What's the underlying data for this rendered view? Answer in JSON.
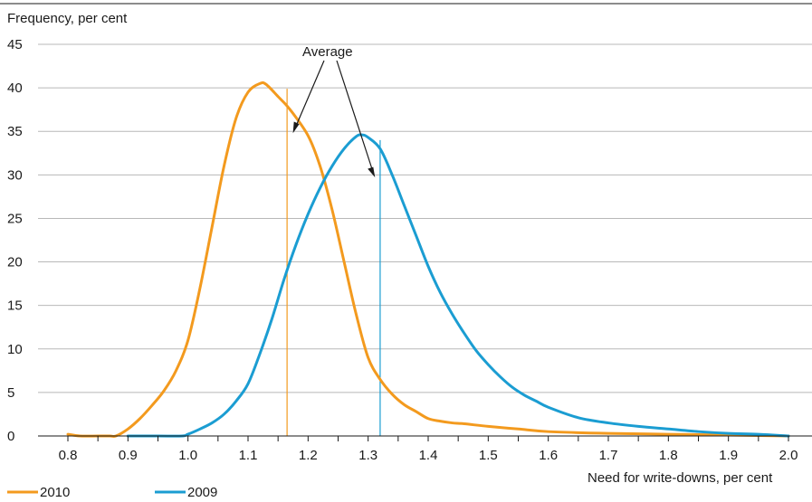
{
  "chart_data": {
    "type": "line",
    "ylabel": "Frequency, per cent",
    "xlabel": "Need for write-downs, per cent",
    "xlim": [
      0.8,
      2.0
    ],
    "ylim": [
      0,
      45
    ],
    "x_ticks": [
      "0.8",
      "0.9",
      "1.0",
      "1.1",
      "1.2",
      "1.3",
      "1.4",
      "1.5",
      "1.6",
      "1.7",
      "1.8",
      "1.9",
      "2.0"
    ],
    "y_ticks": [
      "0",
      "5",
      "10",
      "15",
      "20",
      "25",
      "30",
      "35",
      "40",
      "45"
    ],
    "grid": "horizontal",
    "legend_position": "bottom-left",
    "annotation": "Average",
    "series": [
      {
        "name": "2010",
        "color": "#f39a1e",
        "average": 1.165,
        "points": [
          [
            0.8,
            0.2
          ],
          [
            0.82,
            0.0
          ],
          [
            0.85,
            0.0
          ],
          [
            0.87,
            0.0
          ],
          [
            0.88,
            0.0
          ],
          [
            0.9,
            0.8
          ],
          [
            0.92,
            2.0
          ],
          [
            0.94,
            3.5
          ],
          [
            0.96,
            5.2
          ],
          [
            0.98,
            7.5
          ],
          [
            1.0,
            11.0
          ],
          [
            1.02,
            17.0
          ],
          [
            1.04,
            24.0
          ],
          [
            1.06,
            31.0
          ],
          [
            1.08,
            36.5
          ],
          [
            1.1,
            39.5
          ],
          [
            1.12,
            40.5
          ],
          [
            1.13,
            40.4
          ],
          [
            1.15,
            39.0
          ],
          [
            1.17,
            37.5
          ],
          [
            1.2,
            34.5
          ],
          [
            1.22,
            31.0
          ],
          [
            1.24,
            26.0
          ],
          [
            1.26,
            20.0
          ],
          [
            1.28,
            14.0
          ],
          [
            1.3,
            9.0
          ],
          [
            1.32,
            6.5
          ],
          [
            1.34,
            4.8
          ],
          [
            1.36,
            3.6
          ],
          [
            1.38,
            2.8
          ],
          [
            1.4,
            2.0
          ],
          [
            1.42,
            1.7
          ],
          [
            1.44,
            1.5
          ],
          [
            1.46,
            1.4
          ],
          [
            1.5,
            1.1
          ],
          [
            1.55,
            0.8
          ],
          [
            1.6,
            0.5
          ],
          [
            1.7,
            0.3
          ],
          [
            1.8,
            0.2
          ],
          [
            1.9,
            0.1
          ],
          [
            2.0,
            0.0
          ]
        ]
      },
      {
        "name": "2009",
        "color": "#1b9dd2",
        "average": 1.32,
        "points": [
          [
            0.9,
            0.0
          ],
          [
            0.95,
            0.0
          ],
          [
            0.99,
            0.0
          ],
          [
            1.0,
            0.2
          ],
          [
            1.02,
            0.8
          ],
          [
            1.04,
            1.5
          ],
          [
            1.06,
            2.5
          ],
          [
            1.08,
            4.0
          ],
          [
            1.1,
            6.0
          ],
          [
            1.12,
            9.5
          ],
          [
            1.14,
            13.5
          ],
          [
            1.16,
            18.0
          ],
          [
            1.18,
            22.0
          ],
          [
            1.2,
            25.5
          ],
          [
            1.22,
            28.5
          ],
          [
            1.24,
            31.0
          ],
          [
            1.26,
            33.0
          ],
          [
            1.28,
            34.4
          ],
          [
            1.29,
            34.6
          ],
          [
            1.3,
            34.3
          ],
          [
            1.32,
            33.0
          ],
          [
            1.34,
            30.0
          ],
          [
            1.36,
            26.5
          ],
          [
            1.38,
            23.0
          ],
          [
            1.4,
            19.5
          ],
          [
            1.42,
            16.5
          ],
          [
            1.44,
            14.0
          ],
          [
            1.46,
            11.8
          ],
          [
            1.48,
            9.8
          ],
          [
            1.5,
            8.2
          ],
          [
            1.52,
            6.8
          ],
          [
            1.54,
            5.6
          ],
          [
            1.56,
            4.7
          ],
          [
            1.58,
            4.0
          ],
          [
            1.6,
            3.3
          ],
          [
            1.65,
            2.1
          ],
          [
            1.7,
            1.5
          ],
          [
            1.75,
            1.1
          ],
          [
            1.8,
            0.8
          ],
          [
            1.85,
            0.5
          ],
          [
            1.9,
            0.3
          ],
          [
            1.95,
            0.2
          ],
          [
            2.0,
            0.0
          ]
        ]
      }
    ]
  }
}
